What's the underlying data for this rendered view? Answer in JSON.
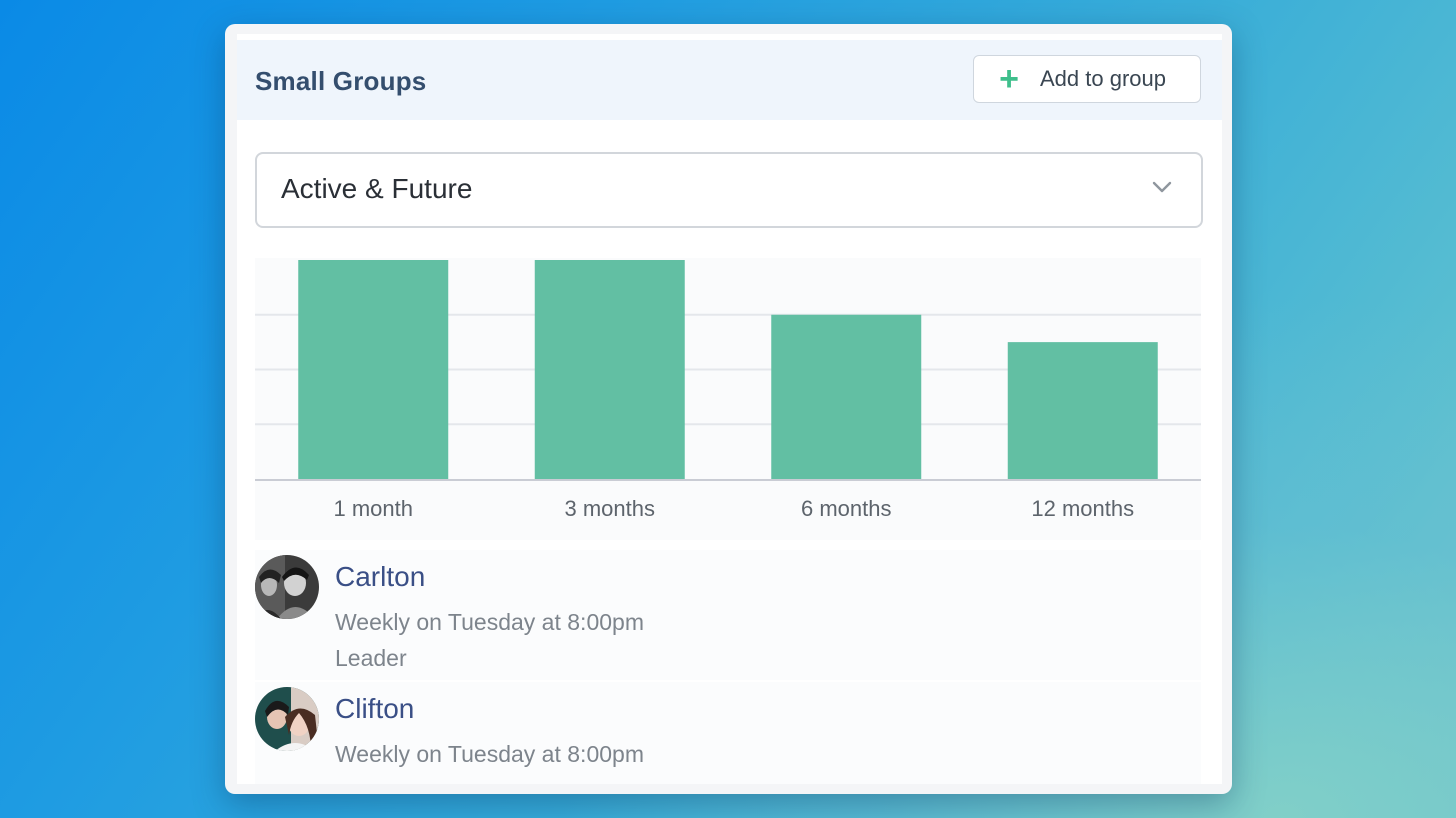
{
  "widget": {
    "title": "Small Groups",
    "add_button_label": "Add to group",
    "add_icon": "plus-icon",
    "filter": {
      "selected": "Active & Future",
      "icon": "chevron-down-icon"
    }
  },
  "chart_data": {
    "type": "bar",
    "categories": [
      "1 month",
      "3 months",
      "6 months",
      "12 months"
    ],
    "values": [
      4,
      4,
      3,
      2.5
    ],
    "ylim": [
      0,
      4
    ],
    "grid": true,
    "color": "#62bfa3"
  },
  "groups": [
    {
      "name": "Carlton",
      "schedule": "Weekly on Tuesday at 8:00pm",
      "role": "Leader"
    },
    {
      "name": "Clifton",
      "schedule": "Weekly on Tuesday at 8:00pm"
    }
  ],
  "colors": {
    "accent_green": "#3fbf8c",
    "bar": "#62bfa3",
    "title": "#344e6e",
    "link": "#3a4f86",
    "muted": "#7d848c"
  }
}
